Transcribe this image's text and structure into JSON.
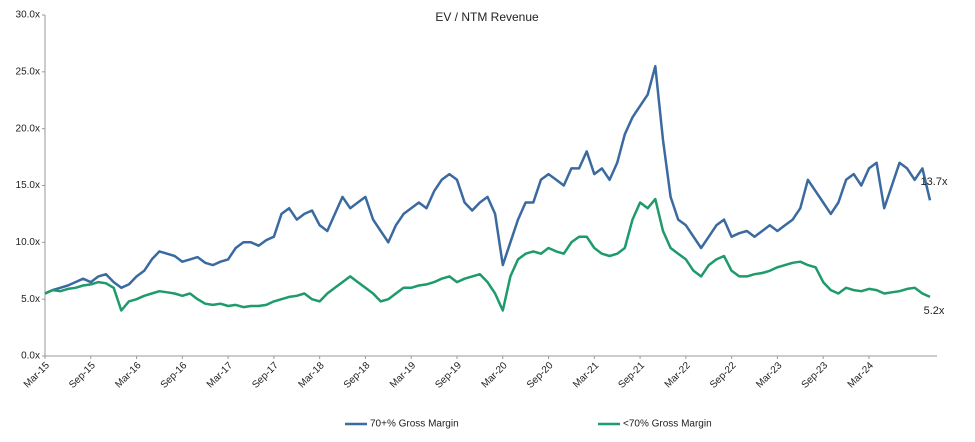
{
  "chart_data": {
    "type": "line",
    "title": "EV / NTM Revenue",
    "categories": [
      "Mar-15",
      null,
      null,
      null,
      null,
      null,
      "Sep-15",
      null,
      null,
      null,
      null,
      null,
      "Mar-16",
      null,
      null,
      null,
      null,
      null,
      "Sep-16",
      null,
      null,
      null,
      null,
      null,
      "Mar-17",
      null,
      null,
      null,
      null,
      null,
      "Sep-17",
      null,
      null,
      null,
      null,
      null,
      "Mar-18",
      null,
      null,
      null,
      null,
      null,
      "Sep-18",
      null,
      null,
      null,
      null,
      null,
      "Mar-19",
      null,
      null,
      null,
      null,
      null,
      "Sep-19",
      null,
      null,
      null,
      null,
      null,
      "Mar-20",
      null,
      null,
      null,
      null,
      null,
      "Sep-20",
      null,
      null,
      null,
      null,
      null,
      "Mar-21",
      null,
      null,
      null,
      null,
      null,
      "Sep-21",
      null,
      null,
      null,
      null,
      null,
      "Mar-22",
      null,
      null,
      null,
      null,
      null,
      "Sep-22",
      null,
      null,
      null,
      null,
      null,
      "Mar-23",
      null,
      null,
      null,
      null,
      null,
      "Sep-23",
      null,
      null,
      null,
      null,
      null,
      "Mar-24",
      null,
      null,
      null,
      null,
      null,
      null,
      null,
      null
    ],
    "series": [
      {
        "name": "70+% Gross Margin",
        "color": "#3a6aa0",
        "values": [
          5.5,
          5.8,
          6.0,
          6.2,
          6.5,
          6.8,
          6.5,
          7.0,
          7.2,
          6.5,
          6.0,
          6.3,
          7.0,
          7.5,
          8.5,
          9.2,
          9.0,
          8.8,
          8.3,
          8.5,
          8.7,
          8.2,
          8.0,
          8.3,
          8.5,
          9.5,
          10.0,
          10.0,
          9.7,
          10.2,
          10.5,
          12.5,
          13.0,
          12.0,
          12.5,
          12.8,
          11.5,
          11.0,
          12.5,
          14.0,
          13.0,
          13.5,
          14.0,
          12.0,
          11.0,
          10.0,
          11.5,
          12.5,
          13.0,
          13.5,
          13.0,
          14.5,
          15.5,
          16.0,
          15.5,
          13.5,
          12.8,
          13.5,
          14.0,
          12.5,
          8.0,
          10.0,
          12.0,
          13.5,
          13.5,
          15.5,
          16.0,
          15.5,
          15.0,
          16.5,
          16.5,
          18.0,
          16.0,
          16.5,
          15.5,
          17.0,
          19.5,
          21.0,
          22.0,
          23.0,
          25.5,
          19.0,
          14.0,
          12.0,
          11.5,
          10.5,
          9.5,
          10.5,
          11.5,
          12.0,
          10.5,
          10.8,
          11.0,
          10.5,
          11.0,
          11.5,
          11.0,
          11.5,
          12.0,
          13.0,
          15.5,
          14.5,
          13.5,
          12.5,
          13.5,
          15.5,
          16.0,
          15.0,
          16.5,
          17.0,
          13.0,
          15.0,
          17.0,
          16.5,
          15.5,
          16.5,
          13.7
        ],
        "value_labels": [
          null,
          null,
          null,
          null,
          null,
          null,
          null,
          null,
          null,
          null,
          null,
          null,
          null,
          null,
          null,
          null,
          null,
          null,
          null,
          null,
          null,
          null,
          null,
          null,
          null,
          null,
          null,
          null,
          null,
          null,
          null,
          null,
          null,
          null,
          null,
          null,
          null,
          null,
          null,
          null,
          null,
          null,
          null,
          null,
          null,
          null,
          null,
          null,
          null,
          null,
          null,
          null,
          null,
          null,
          null,
          null,
          null,
          null,
          null,
          null,
          null,
          null,
          null,
          null,
          null,
          null,
          null,
          null,
          null,
          null,
          null,
          null,
          null,
          null,
          null,
          null,
          null,
          null,
          null,
          null,
          null,
          null,
          null,
          null,
          null,
          null,
          null,
          null,
          null,
          null,
          null,
          null,
          null,
          null,
          null,
          null,
          null,
          null,
          null,
          null,
          null,
          null,
          null,
          null,
          null,
          null,
          null,
          null,
          null,
          null,
          null,
          null,
          null,
          null,
          null,
          null,
          "13.7x"
        ]
      },
      {
        "name": "<70% Gross Margin",
        "color": "#1e9a6b",
        "values": [
          5.5,
          5.8,
          5.7,
          5.9,
          6.0,
          6.2,
          6.3,
          6.5,
          6.4,
          6.0,
          4.0,
          4.8,
          5.0,
          5.3,
          5.5,
          5.7,
          5.6,
          5.5,
          5.3,
          5.5,
          5.0,
          4.6,
          4.5,
          4.6,
          4.4,
          4.5,
          4.3,
          4.4,
          4.4,
          4.5,
          4.8,
          5.0,
          5.2,
          5.3,
          5.5,
          5.0,
          4.8,
          5.5,
          6.0,
          6.5,
          7.0,
          6.5,
          6.0,
          5.5,
          4.8,
          5.0,
          5.5,
          6.0,
          6.0,
          6.2,
          6.3,
          6.5,
          6.8,
          7.0,
          6.5,
          6.8,
          7.0,
          7.2,
          6.5,
          5.5,
          4.0,
          7.0,
          8.5,
          9.0,
          9.2,
          9.0,
          9.5,
          9.2,
          9.0,
          10.0,
          10.5,
          10.5,
          9.5,
          9.0,
          8.8,
          9.0,
          9.5,
          12.0,
          13.5,
          13.0,
          13.8,
          11.0,
          9.5,
          9.0,
          8.5,
          7.5,
          7.0,
          8.0,
          8.5,
          8.8,
          7.5,
          7.0,
          7.0,
          7.2,
          7.3,
          7.5,
          7.8,
          8.0,
          8.2,
          8.3,
          8.0,
          7.8,
          6.5,
          5.8,
          5.5,
          6.0,
          5.8,
          5.7,
          5.9,
          5.8,
          5.5,
          5.6,
          5.7,
          5.9,
          6.0,
          5.5,
          5.2
        ],
        "value_labels": [
          null,
          null,
          null,
          null,
          null,
          null,
          null,
          null,
          null,
          null,
          null,
          null,
          null,
          null,
          null,
          null,
          null,
          null,
          null,
          null,
          null,
          null,
          null,
          null,
          null,
          null,
          null,
          null,
          null,
          null,
          null,
          null,
          null,
          null,
          null,
          null,
          null,
          null,
          null,
          null,
          null,
          null,
          null,
          null,
          null,
          null,
          null,
          null,
          null,
          null,
          null,
          null,
          null,
          null,
          null,
          null,
          null,
          null,
          null,
          null,
          null,
          null,
          null,
          null,
          null,
          null,
          null,
          null,
          null,
          null,
          null,
          null,
          null,
          null,
          null,
          null,
          null,
          null,
          null,
          null,
          null,
          null,
          null,
          null,
          null,
          null,
          null,
          null,
          null,
          null,
          null,
          null,
          null,
          null,
          null,
          null,
          null,
          null,
          null,
          null,
          null,
          null,
          null,
          null,
          null,
          null,
          null,
          null,
          null,
          null,
          null,
          null,
          null,
          null,
          null,
          null,
          "5.2x"
        ]
      }
    ],
    "ylim": [
      0,
      30
    ],
    "yticks": [
      {
        "value": 0,
        "label": "0.0x"
      },
      {
        "value": 5,
        "label": "5.0x"
      },
      {
        "value": 10,
        "label": "10.0x"
      },
      {
        "value": 15,
        "label": "15.0x"
      },
      {
        "value": 20,
        "label": "20.0x"
      },
      {
        "value": 25,
        "label": "25.0x"
      },
      {
        "value": 30,
        "label": "30.0x"
      }
    ],
    "grid": false,
    "legend": "bottom"
  }
}
